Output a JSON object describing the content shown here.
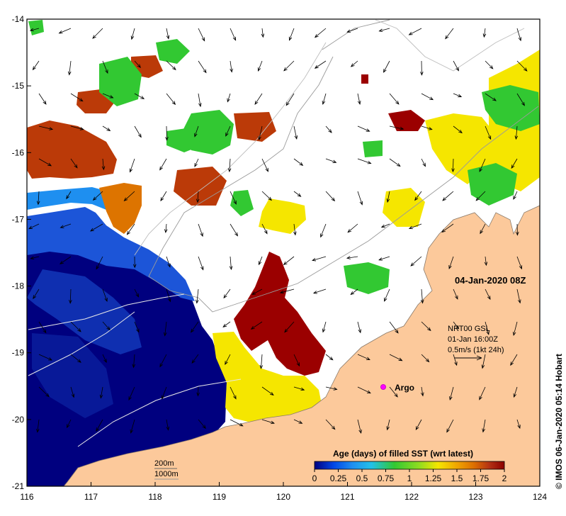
{
  "map": {
    "date_label": "04-Jan-2020 08Z",
    "argo_label": "Argo",
    "current_ref": {
      "line1": "NRT00 GSL",
      "line2": "01-Jan 16:00Z",
      "line3": "0.5m/s (1kt 24h)"
    },
    "isobaths": {
      "contour_a": "200m",
      "contour_b": "1000m"
    },
    "credit": "© IMOS 06-Jan-2020 05:14 Hobart",
    "colors": {
      "land": "#fcc99b",
      "sea": "#ffffff",
      "coast_line": "#8a7a6a"
    }
  },
  "axes": {
    "x_ticks": [
      "116",
      "117",
      "118",
      "119",
      "120",
      "121",
      "122",
      "123",
      "124"
    ],
    "y_ticks": [
      "-14",
      "-15",
      "-16",
      "-17",
      "-18",
      "-19",
      "-20",
      "-21"
    ],
    "xlim": [
      116,
      124
    ],
    "ylim": [
      -21,
      -14
    ]
  },
  "colorbar": {
    "title": "Age (days) of filled SST (wrt latest)",
    "tick_labels": [
      "0",
      "0.25",
      "0.5",
      "0.75",
      "1",
      "1.25",
      "1.5",
      "1.75",
      "2"
    ],
    "range": [
      0,
      2
    ],
    "stops": [
      "#00007f",
      "#0046e6",
      "#1e8ff0",
      "#22c1e8",
      "#32c832",
      "#8fdc20",
      "#f5e600",
      "#f0a500",
      "#dc6e00",
      "#b43214",
      "#8b0000"
    ]
  }
}
